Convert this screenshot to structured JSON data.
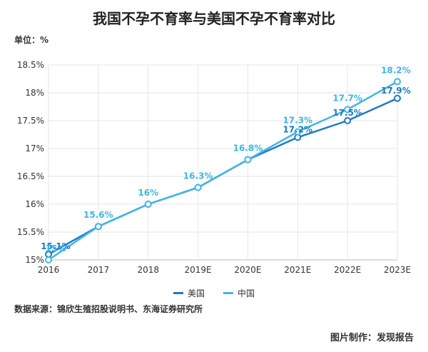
{
  "title": "我国不孕不育率与美国不孕不育率对比",
  "unit_label": "单位：%",
  "source": "数据来源：锦欣生殖招股说明书、东海证券研究所",
  "credit": "图片制作：发现报告",
  "chart_data": {
    "type": "line",
    "title": "我国不孕不育率与美国不孕不育率对比",
    "ylabel": "单位：%",
    "xlabel": "",
    "x": [
      "2016",
      "2017",
      "2018",
      "2019E",
      "2020E",
      "2021E",
      "2022E",
      "2023E"
    ],
    "ylim": [
      15,
      18.5
    ],
    "yticks": [
      "15%",
      "15.5%",
      "16%",
      "16.5%",
      "17%",
      "17.5%",
      "18%",
      "18.5%"
    ],
    "grid": "horizontal",
    "legend_position": "bottom",
    "series": [
      {
        "name": "美国",
        "color": "#1f7ac2",
        "values": [
          15.1,
          15.6,
          16.0,
          16.3,
          16.8,
          17.2,
          17.5,
          17.9
        ],
        "labels": [
          "15.1%",
          "",
          "",
          "",
          "",
          "17.2%",
          "17.5%",
          "17.9%"
        ]
      },
      {
        "name": "中国",
        "color": "#43b5e3",
        "values": [
          15.0,
          15.6,
          16.0,
          16.3,
          16.8,
          17.3,
          17.7,
          18.2
        ],
        "labels": [
          "15%",
          "15.6%",
          "16%",
          "16.3%",
          "16.8%",
          "17.3%",
          "17.7%",
          "18.2%"
        ]
      }
    ]
  }
}
